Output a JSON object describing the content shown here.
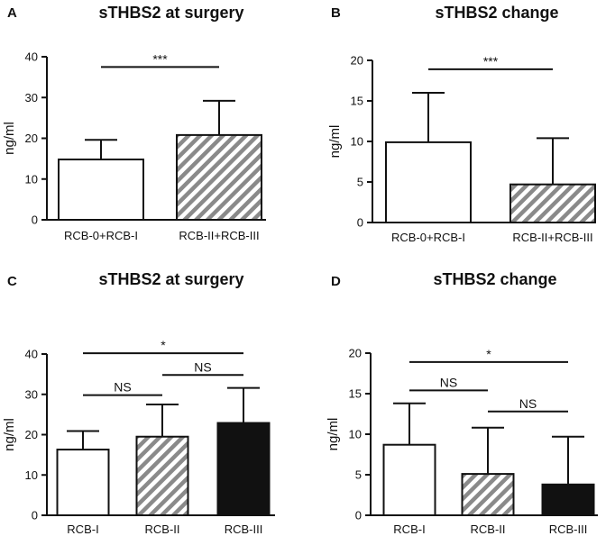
{
  "chart_data": [
    {
      "panel": "A",
      "type": "bar",
      "title": "sTHBS2 at surgery",
      "ylabel": "ng/ml",
      "ylim": [
        0,
        40
      ],
      "yticks": [
        "0",
        "10",
        "20",
        "30",
        "40"
      ],
      "categories": [
        "RCB-0+RCB-I",
        "RCB-II+RCB-III"
      ],
      "values": [
        14.8,
        20.8
      ],
      "errors": [
        4.8,
        8.4
      ],
      "fills": [
        "white",
        "hatch"
      ],
      "comparisons": [
        {
          "from": 0,
          "to": 1,
          "label": "***",
          "y": 37.5
        }
      ]
    },
    {
      "panel": "B",
      "type": "bar",
      "title": "sTHBS2 change",
      "ylabel": "ng/ml",
      "ylim": [
        0,
        20
      ],
      "yticks": [
        "0",
        "5",
        "10",
        "15",
        "20"
      ],
      "categories": [
        "RCB-0+RCB-I",
        "RCB-II+RCB-III"
      ],
      "values": [
        9.9,
        4.7
      ],
      "errors": [
        6.1,
        5.7
      ],
      "fills": [
        "white",
        "hatch"
      ],
      "comparisons": [
        {
          "from": 0,
          "to": 1,
          "label": "***",
          "y": 18.9
        }
      ]
    },
    {
      "panel": "C",
      "type": "bar",
      "title": "sTHBS2 at surgery",
      "ylabel": "ng/ml",
      "ylim": [
        0,
        40
      ],
      "yticks": [
        "0",
        "10",
        "20",
        "30",
        "40"
      ],
      "categories": [
        "RCB-I",
        "RCB-II",
        "RCB-III"
      ],
      "values": [
        16.3,
        19.5,
        22.9
      ],
      "errors": [
        4.6,
        8.0,
        8.7
      ],
      "fills": [
        "white",
        "hatch",
        "black"
      ],
      "comparisons": [
        {
          "from": 0,
          "to": 1,
          "label": "NS",
          "y": 29.8
        },
        {
          "from": 1,
          "to": 2,
          "label": "NS",
          "y": 34.8
        },
        {
          "from": 0,
          "to": 2,
          "label": "*",
          "y": 40.2
        }
      ]
    },
    {
      "panel": "D",
      "type": "bar",
      "title": "sTHBS2 change",
      "ylabel": "ng/ml",
      "ylim": [
        0,
        20
      ],
      "yticks": [
        "0",
        "5",
        "10",
        "15",
        "20"
      ],
      "categories": [
        "RCB-I",
        "RCB-II",
        "RCB-III"
      ],
      "values": [
        8.7,
        5.1,
        3.8
      ],
      "errors": [
        5.1,
        5.7,
        5.9
      ],
      "fills": [
        "white",
        "hatch",
        "black"
      ],
      "comparisons": [
        {
          "from": 0,
          "to": 1,
          "label": "NS",
          "y": 15.4
        },
        {
          "from": 1,
          "to": 2,
          "label": "NS",
          "y": 12.8
        },
        {
          "from": 0,
          "to": 2,
          "label": "*",
          "y": 18.9
        }
      ]
    }
  ]
}
